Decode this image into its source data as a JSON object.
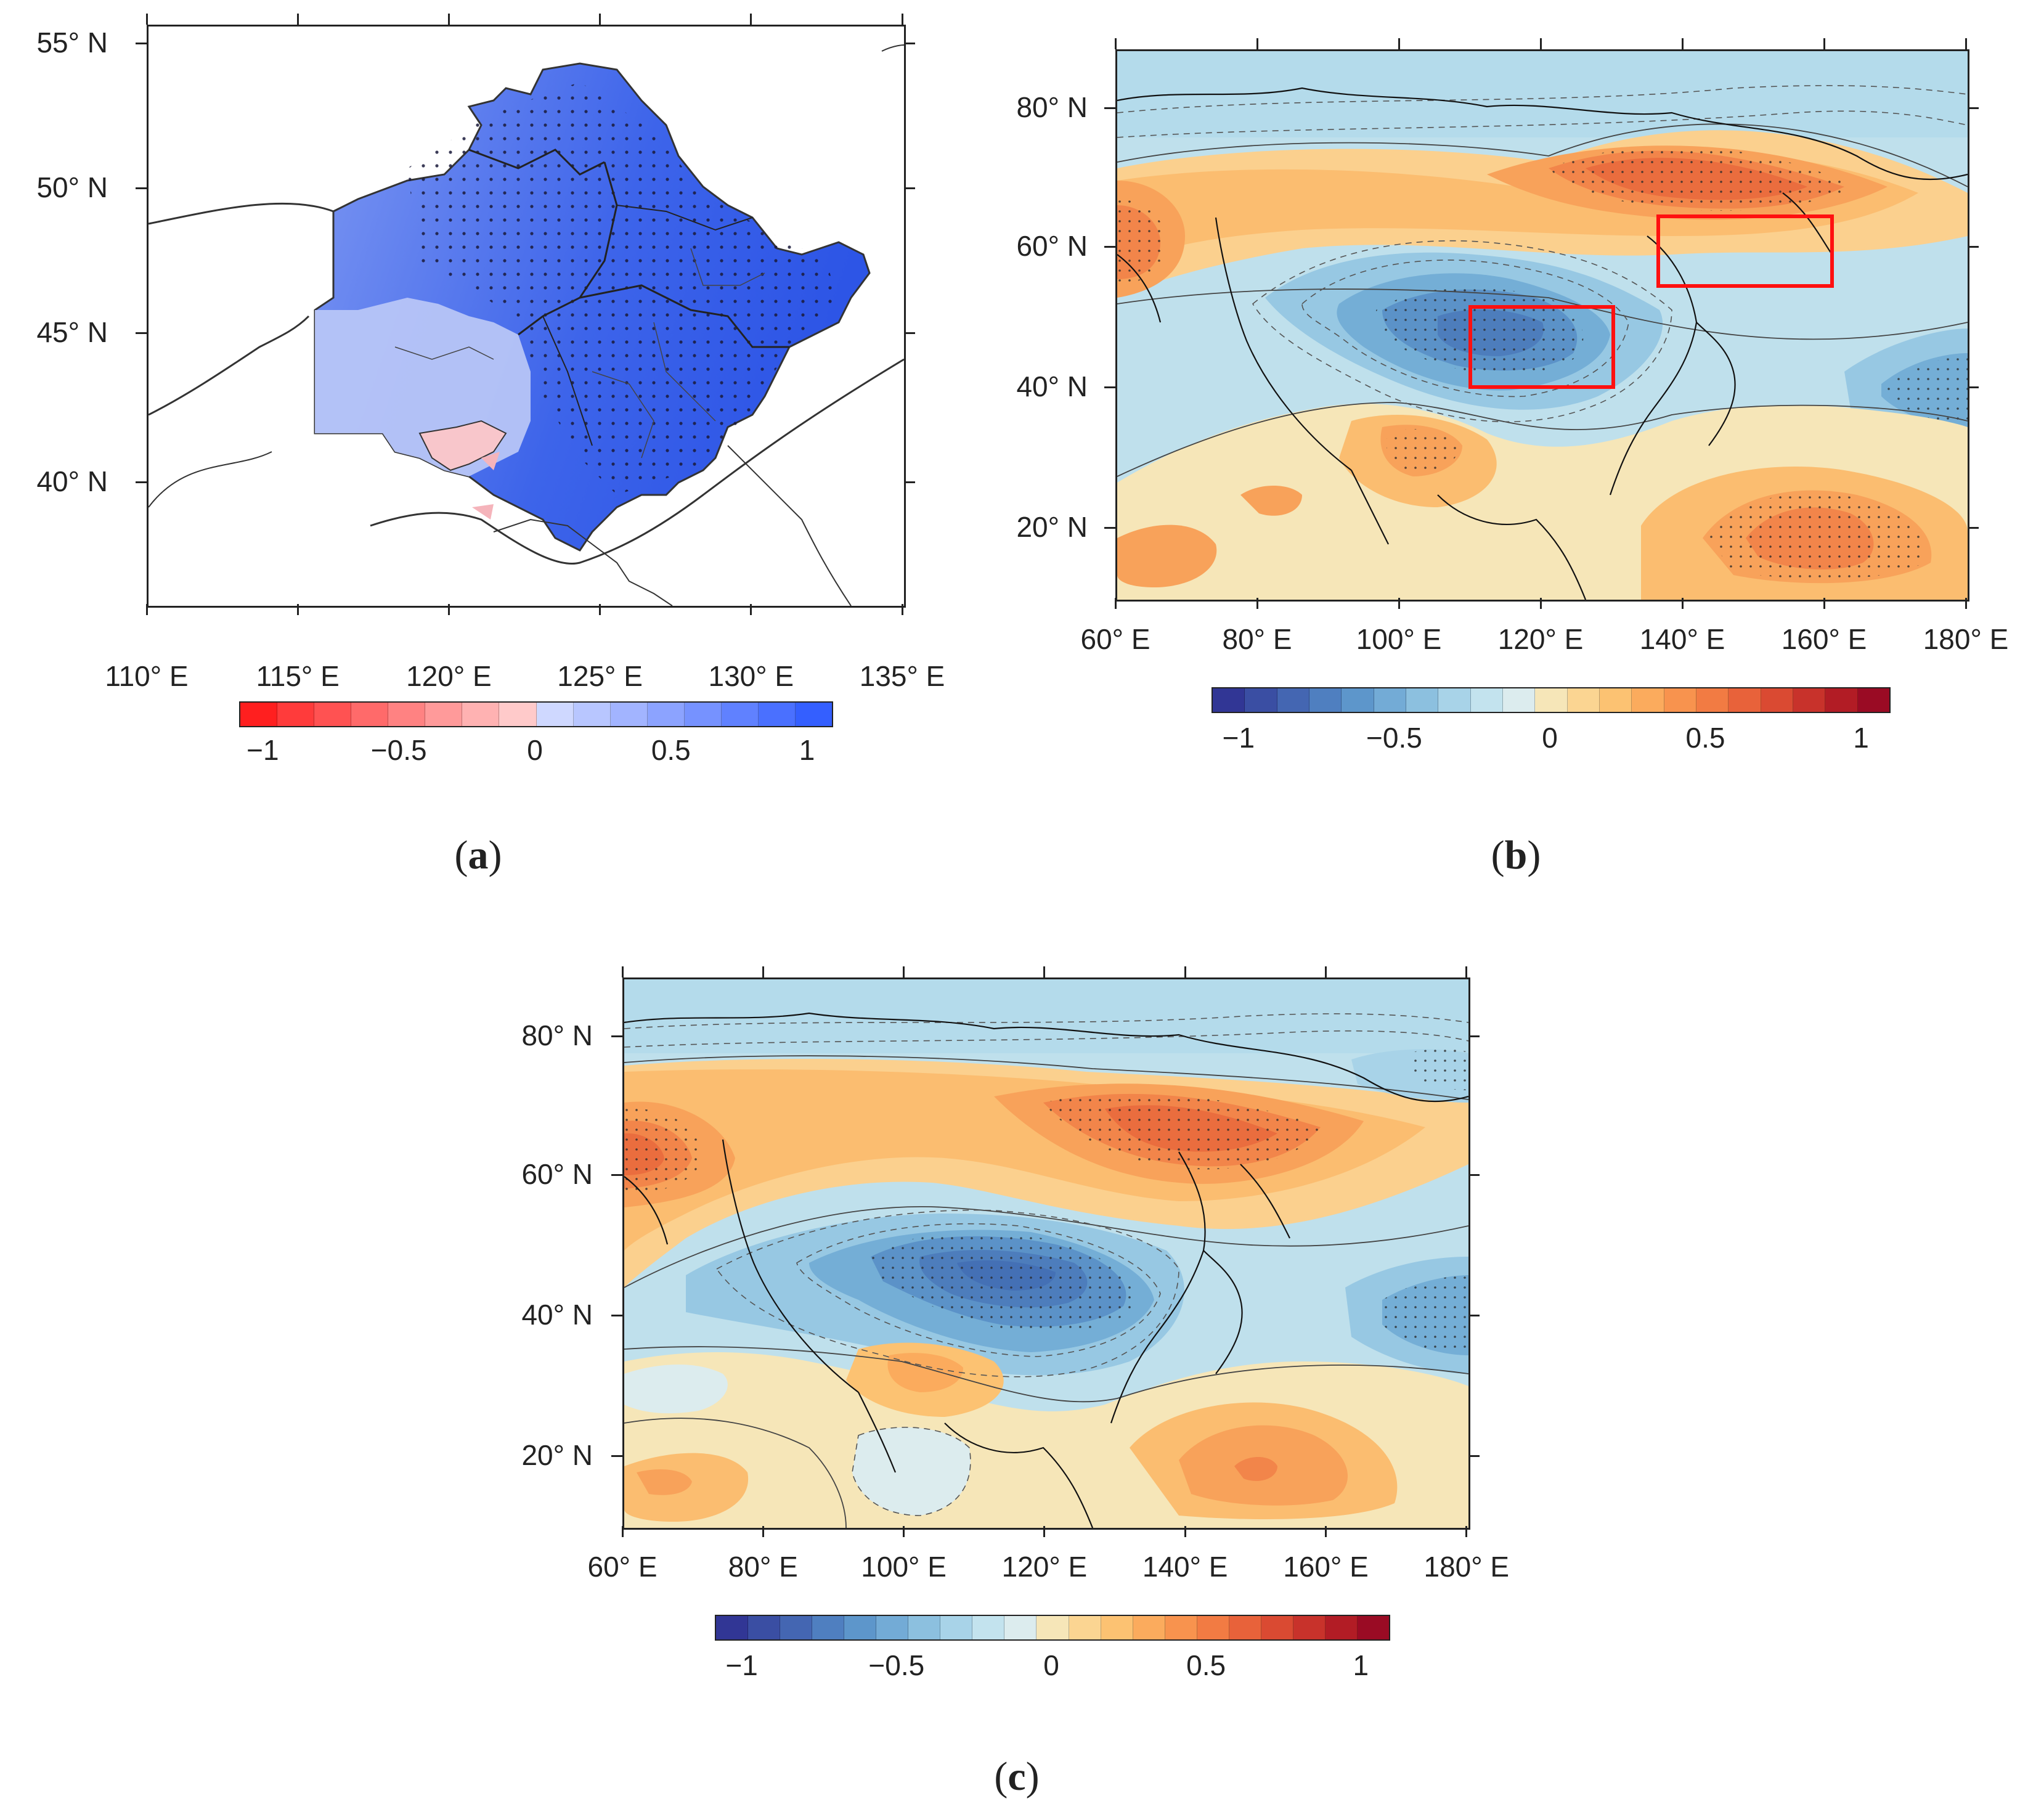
{
  "panels": {
    "a": {
      "caption_letter": "a",
      "lon_labels": [
        "110° E",
        "115° E",
        "120° E",
        "125° E",
        "130° E",
        "135° E"
      ],
      "lat_labels": [
        "55° N",
        "50° N",
        "45° N",
        "40° N"
      ],
      "colorbar": {
        "ticks": [
          "−1",
          "−0.5",
          "0",
          "0.5",
          "1"
        ],
        "colors": [
          "#ff1f1f",
          "#ff3b3b",
          "#ff5252",
          "#ff6a6a",
          "#ff8282",
          "#ff9a9a",
          "#ffb2b2",
          "#ffcaca",
          "#cfd8ff",
          "#b8c6ff",
          "#a2b4ff",
          "#8ca3ff",
          "#7692ff",
          "#6081ff",
          "#4a70ff",
          "#345fff"
        ]
      }
    },
    "b": {
      "caption_letter": "b",
      "lon_labels": [
        "60° E",
        "80° E",
        "100° E",
        "120° E",
        "140° E",
        "160° E",
        "180° E"
      ],
      "lat_labels": [
        "80° N",
        "60° N",
        "40° N",
        "20° N"
      ],
      "colorbar": {
        "ticks": [
          "−1",
          "−0.5",
          "0",
          "0.5",
          "1"
        ],
        "colors": [
          "#313695",
          "#3a4ea3",
          "#4466b2",
          "#4f7fc0",
          "#5d96cb",
          "#73abd6",
          "#8cc0df",
          "#a8d3e8",
          "#c3e3ee",
          "#dcecee",
          "#f6e6b8",
          "#fbd592",
          "#fcc272",
          "#fbab5d",
          "#f8934e",
          "#f27b43",
          "#e8623a",
          "#da4a32",
          "#c8322b",
          "#b21c25",
          "#9a0b24"
        ]
      }
    },
    "c": {
      "caption_letter": "c",
      "lon_labels": [
        "60° E",
        "80° E",
        "100° E",
        "120° E",
        "140° E",
        "160° E",
        "180° E"
      ],
      "lat_labels": [
        "80° N",
        "60° N",
        "40° N",
        "20° N"
      ],
      "colorbar": {
        "ticks": [
          "−1",
          "−0.5",
          "0",
          "0.5",
          "1"
        ],
        "colors": [
          "#313695",
          "#3a4ea3",
          "#4466b2",
          "#4f7fc0",
          "#5d96cb",
          "#73abd6",
          "#8cc0df",
          "#a8d3e8",
          "#c3e3ee",
          "#dcecee",
          "#f6e6b8",
          "#fbd592",
          "#fcc272",
          "#fbab5d",
          "#f8934e",
          "#f27b43",
          "#e8623a",
          "#da4a32",
          "#c8322b",
          "#b21c25",
          "#9a0b24"
        ]
      }
    }
  }
}
